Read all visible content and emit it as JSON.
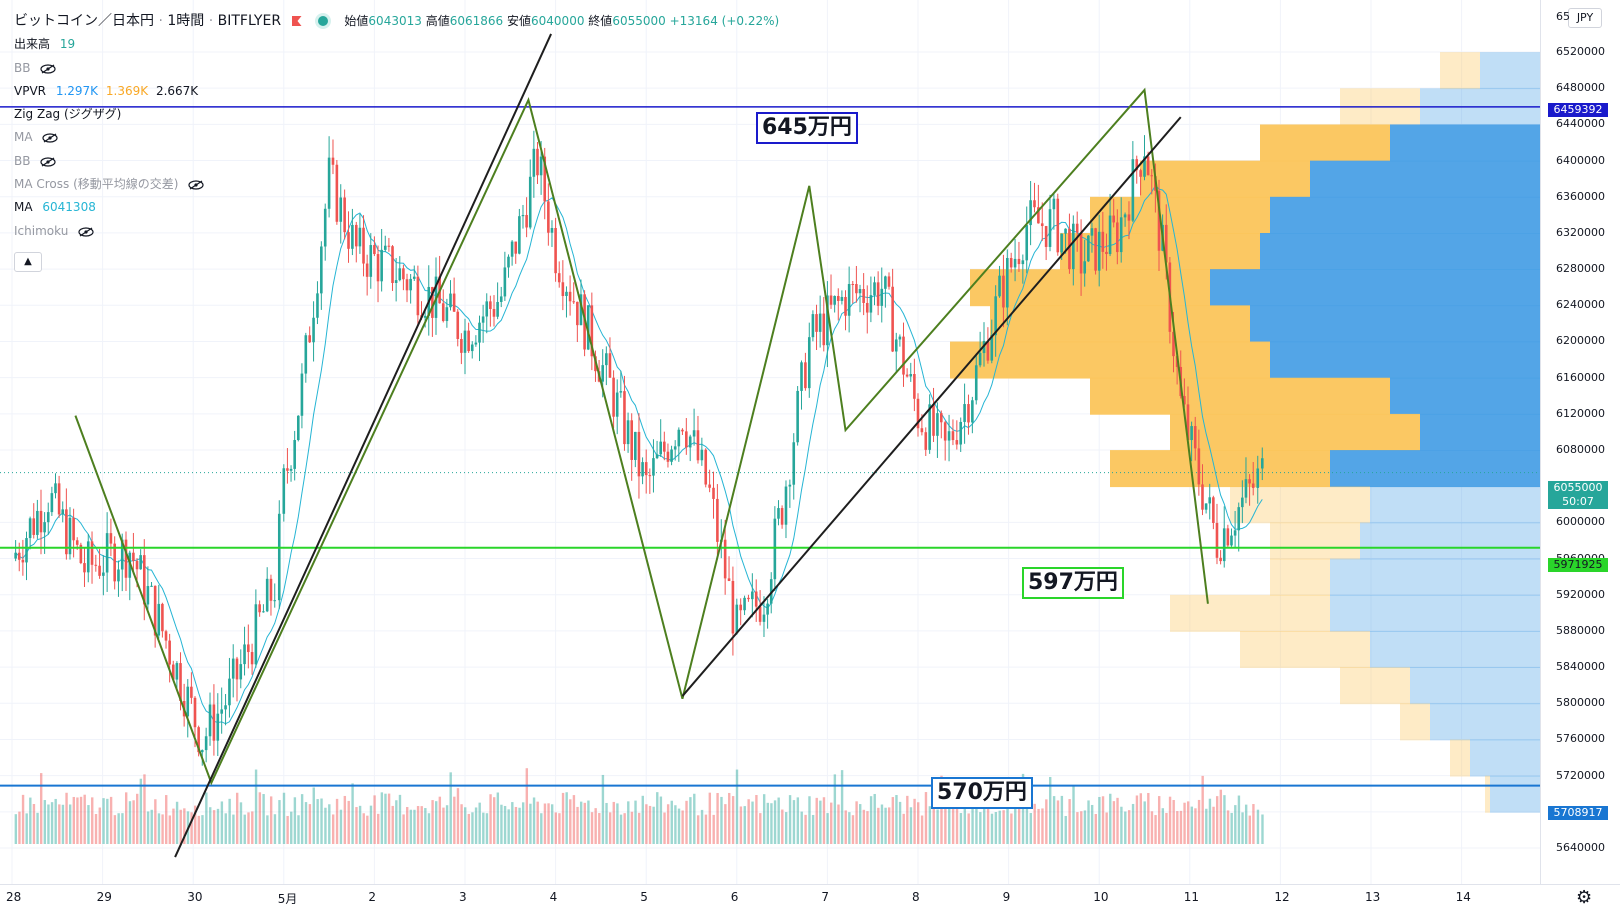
{
  "header": {
    "symbol": "ビットコイン／日本円",
    "interval": "1時間",
    "exchange": "BITFLYER",
    "ohlc": {
      "open_label": "始値",
      "open": "6043013",
      "high_label": "高値",
      "high": "6061866",
      "low_label": "安値",
      "low": "6040000",
      "close_label": "終値",
      "close": "6055000",
      "change": "+13164 (+0.22%)"
    }
  },
  "indicators": {
    "volume_label": "出来高",
    "volume_value": "19",
    "bb1": "BB",
    "vpvr_label": "VPVR",
    "vpvr_v1": "1.297K",
    "vpvr_v2": "1.369K",
    "vpvr_v3": "2.667K",
    "zigzag": "Zig Zag (ジグザグ)",
    "ma1": "MA",
    "bb2": "BB",
    "macross": "MA Cross (移動平均線の交差)",
    "ma2_label": "MA",
    "ma2_value": "6041308",
    "ichimoku": "Ichimoku"
  },
  "annotations": {
    "a645": "645万円",
    "a597": "597万円",
    "a570": "570万円"
  },
  "price_axis": {
    "currency": "JPY",
    "top_partial": "65",
    "labels": [
      "6520000",
      "6480000",
      "6440000",
      "6400000",
      "6360000",
      "6320000",
      "6280000",
      "6240000",
      "6200000",
      "6160000",
      "6120000",
      "6080000",
      "6000000",
      "5960000",
      "5920000",
      "5880000",
      "5840000",
      "5800000",
      "5760000",
      "5720000",
      "5680000",
      "5640000"
    ],
    "tag_resistance": "6459392",
    "tag_current": "6055000",
    "tag_countdown": "50:07",
    "tag_support": "5971925",
    "tag_bottom": "5708917"
  },
  "time_axis": {
    "labels": [
      "28",
      "29",
      "30",
      "5月",
      "2",
      "3",
      "4",
      "5",
      "6",
      "7",
      "8",
      "9",
      "10",
      "11",
      "12",
      "13",
      "14"
    ]
  },
  "colors": {
    "up": "#26a69a",
    "down": "#ef5350",
    "resistance_line": "#1a1acb",
    "support_line": "#2ad52a",
    "bottom_line": "#1976d2",
    "zigzag": "#4d7f1f",
    "trend": "#1e1e1e",
    "ma": "#26b5d4",
    "vp_buy": "#fbc55b",
    "vp_sell": "#4aa0e6"
  },
  "chart_data": {
    "type": "candlestick",
    "ylim": [
      5630000,
      6540000
    ],
    "zigzag_points": [
      [
        28.7,
        6118000
      ],
      [
        30.2,
        5712000
      ],
      [
        3.7,
        6467000
      ],
      [
        5.4,
        5805000
      ],
      [
        6.8,
        6372000
      ],
      [
        7.2,
        6102000
      ],
      [
        10.5,
        6478000
      ],
      [
        11.2,
        5910000
      ]
    ],
    "trend_lines": [
      [
        [
          29.8,
          5630000
        ],
        [
          3.95,
          6540000
        ]
      ],
      [
        [
          5.4,
          5808000
        ],
        [
          10.9,
          6448000
        ]
      ]
    ],
    "horizontal_levels": [
      6459392,
      5971925,
      5708917
    ],
    "current_price": 6055000,
    "candle_anchors": [
      [
        28.0,
        5960000
      ],
      [
        28.4,
        6030000
      ],
      [
        28.8,
        5950000
      ],
      [
        29.3,
        5970000
      ],
      [
        29.7,
        5870000
      ],
      [
        30.1,
        5760000
      ],
      [
        30.4,
        5810000
      ],
      [
        30.9,
        5930000
      ],
      [
        31.0,
        6040000
      ],
      [
        31.2,
        6150000
      ],
      [
        31.5,
        6380000
      ],
      [
        31.8,
        6300000
      ],
      [
        32.2,
        6280000
      ],
      [
        32.6,
        6250000
      ],
      [
        33.0,
        6210000
      ],
      [
        33.4,
        6250000
      ],
      [
        33.8,
        6400000
      ],
      [
        34.0,
        6300000
      ],
      [
        34.2,
        6250000
      ],
      [
        34.6,
        6150000
      ],
      [
        35.0,
        6040000
      ],
      [
        35.4,
        6120000
      ],
      [
        35.7,
        6030000
      ],
      [
        36.0,
        5880000
      ],
      [
        36.3,
        5920000
      ],
      [
        36.5,
        6020000
      ],
      [
        36.8,
        6200000
      ],
      [
        37.2,
        6250000
      ],
      [
        37.6,
        6260000
      ],
      [
        38.0,
        6120000
      ],
      [
        38.3,
        6080000
      ],
      [
        38.6,
        6150000
      ],
      [
        38.9,
        6250000
      ],
      [
        39.2,
        6330000
      ],
      [
        39.5,
        6330000
      ],
      [
        39.8,
        6290000
      ],
      [
        40.2,
        6320000
      ],
      [
        40.5,
        6420000
      ],
      [
        40.7,
        6300000
      ],
      [
        40.9,
        6130000
      ],
      [
        41.1,
        6050000
      ],
      [
        41.3,
        5980000
      ],
      [
        41.5,
        6010000
      ],
      [
        41.7,
        6040000
      ],
      [
        41.8,
        6055000
      ]
    ],
    "volume_profile_note": "horizontal volume bars on right",
    "volume_note": "volume bars at bottom"
  }
}
